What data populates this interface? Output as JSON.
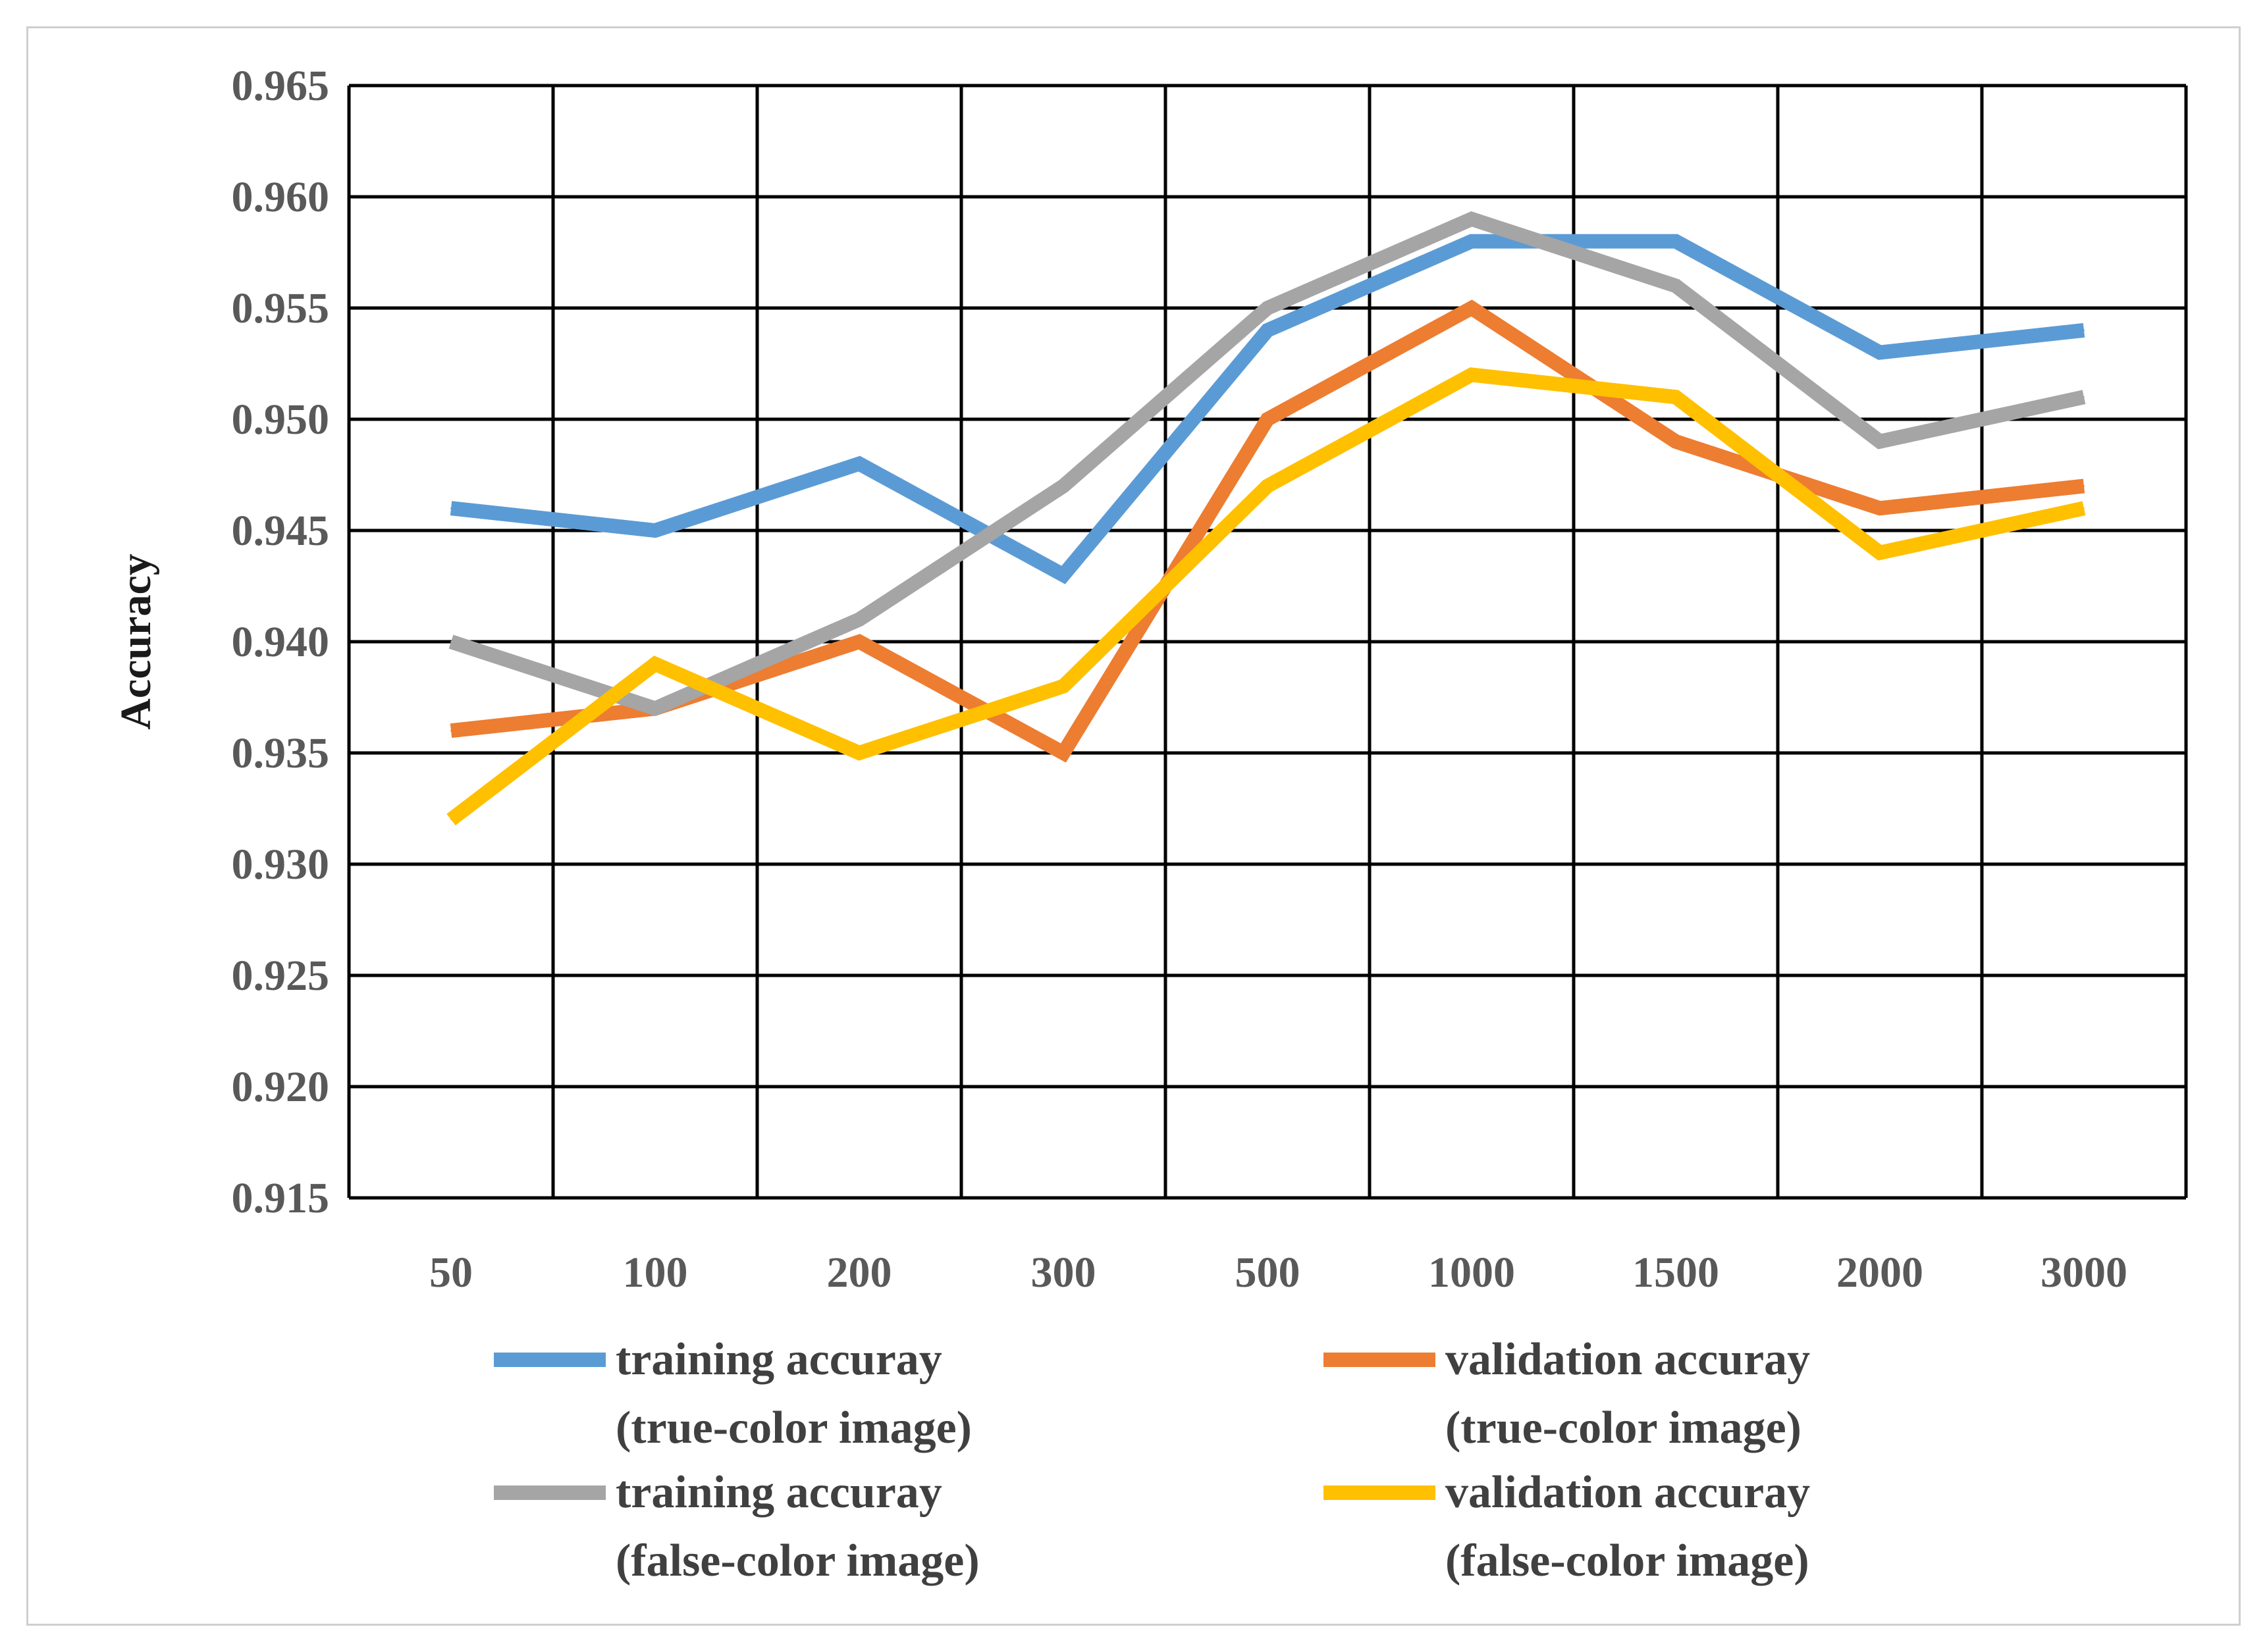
{
  "chart_data": {
    "type": "line",
    "title": "",
    "xlabel": "",
    "ylabel": "Accuracy",
    "categories": [
      "50",
      "100",
      "200",
      "300",
      "500",
      "1000",
      "1500",
      "2000",
      "3000"
    ],
    "ylim": [
      0.915,
      0.965
    ],
    "yticks": [
      "0.915",
      "0.920",
      "0.925",
      "0.930",
      "0.935",
      "0.940",
      "0.945",
      "0.950",
      "0.955",
      "0.960",
      "0.965"
    ],
    "grid": true,
    "legend_position": "bottom",
    "series": [
      {
        "name": "training accuray (true-color image)",
        "label_line1": "training accuray",
        "label_line2": "(true-color image)",
        "color": "#5B9BD5",
        "values": [
          0.946,
          0.945,
          0.948,
          0.943,
          0.954,
          0.958,
          0.958,
          0.953,
          0.954
        ]
      },
      {
        "name": "validation accuray (true-color image)",
        "label_line1": "validation accuray",
        "label_line2": "(true-color image)",
        "color": "#ED7D31",
        "values": [
          0.936,
          0.937,
          0.94,
          0.935,
          0.95,
          0.955,
          0.949,
          0.946,
          0.947
        ]
      },
      {
        "name": "training accuray (false-color image)",
        "label_line1": "training accuray",
        "label_line2": "(false-color image)",
        "color": "#A5A5A5",
        "values": [
          0.94,
          0.937,
          0.941,
          0.947,
          0.955,
          0.959,
          0.956,
          0.949,
          0.951
        ]
      },
      {
        "name": "validation accuray (false-color image)",
        "label_line1": "validation accuray",
        "label_line2": "(false-color image)",
        "color": "#FFC000",
        "values": [
          0.932,
          0.939,
          0.935,
          0.938,
          0.947,
          0.952,
          0.951,
          0.944,
          0.946
        ]
      }
    ]
  }
}
